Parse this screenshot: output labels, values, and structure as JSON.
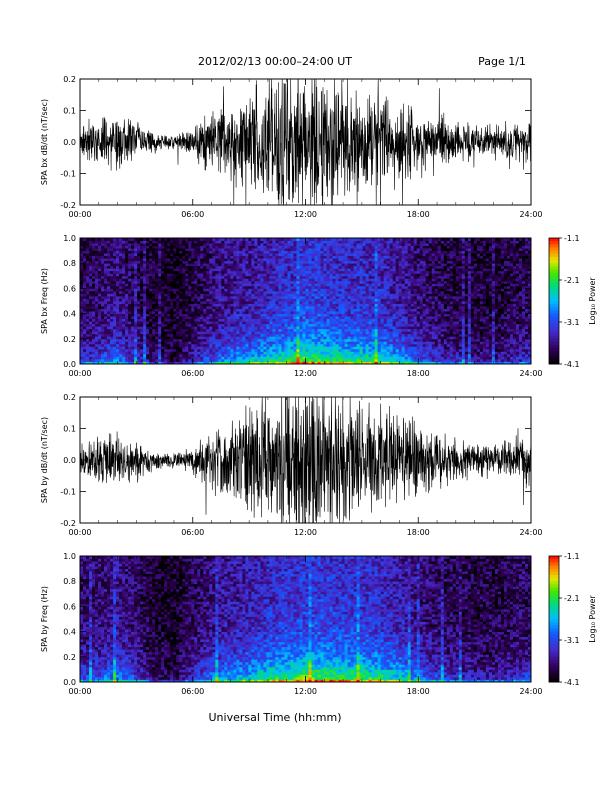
{
  "header": {
    "title": "2012/02/13  00:00–24:00 UT",
    "page": "Page 1/1"
  },
  "footer": {
    "xlabel": "Universal Time (hh:mm)"
  },
  "colorbar": {
    "label": "Log₁₀ Power",
    "ticks": [
      "-1.1",
      "-2.1",
      "-3.1",
      "-4.1"
    ]
  },
  "chart_data": [
    {
      "type": "line",
      "ylabel": "SPA bx dB/dt (nT/sec)",
      "xlim": [
        0,
        24
      ],
      "ylim": [
        -0.2,
        0.2
      ],
      "xticks": [
        "00:00",
        "06:00",
        "12:00",
        "18:00",
        "24:00"
      ],
      "yticks": [
        "-0.2",
        "-0.1",
        "0.0",
        "0.1",
        "0.2"
      ],
      "series": [
        {
          "x": [
            0,
            1,
            2,
            3,
            4,
            5,
            6,
            7,
            8,
            9,
            10,
            11,
            12,
            13,
            14,
            15,
            16,
            17,
            18,
            19,
            20,
            21,
            22,
            23,
            24
          ],
          "amplitude": [
            0.05,
            0.07,
            0.09,
            0.06,
            0.03,
            0.02,
            0.04,
            0.09,
            0.11,
            0.15,
            0.2,
            0.22,
            0.24,
            0.22,
            0.18,
            0.15,
            0.14,
            0.12,
            0.1,
            0.08,
            0.06,
            0.05,
            0.05,
            0.06,
            0.07
          ]
        }
      ]
    },
    {
      "type": "heatmap",
      "ylabel": "SPA bx Freq (Hz)",
      "xlim": [
        0,
        24
      ],
      "ylim": [
        0,
        1.0
      ],
      "zlim": [
        -4.1,
        -1.1
      ],
      "xticks": [
        "00:00",
        "06:00",
        "12:00",
        "18:00",
        "24:00"
      ],
      "yticks": [
        "0.0",
        "0.2",
        "0.4",
        "0.6",
        "0.8",
        "1.0"
      ],
      "activity": {
        "hours": [
          0,
          1,
          2,
          3,
          4,
          5,
          6,
          7,
          8,
          9,
          10,
          11,
          12,
          13,
          14,
          15,
          16,
          17,
          18,
          19,
          20,
          21,
          22,
          23,
          24
        ],
        "level": [
          0.3,
          0.35,
          0.45,
          0.3,
          0.15,
          0.1,
          0.25,
          0.4,
          0.5,
          0.55,
          0.65,
          0.7,
          0.8,
          0.75,
          0.7,
          0.7,
          0.65,
          0.55,
          0.4,
          0.3,
          0.25,
          0.2,
          0.2,
          0.25,
          0.3
        ]
      }
    },
    {
      "type": "line",
      "ylabel": "SPA by dB/dt (nT/sec)",
      "xlim": [
        0,
        24
      ],
      "ylim": [
        -0.2,
        0.2
      ],
      "xticks": [
        "00:00",
        "06:00",
        "12:00",
        "18:00",
        "24:00"
      ],
      "yticks": [
        "-0.2",
        "-0.1",
        "0.0",
        "0.1",
        "0.2"
      ],
      "series": [
        {
          "x": [
            0,
            1,
            2,
            3,
            4,
            5,
            6,
            7,
            8,
            9,
            10,
            11,
            12,
            13,
            14,
            15,
            16,
            17,
            18,
            19,
            20,
            21,
            22,
            23,
            24
          ],
          "amplitude": [
            0.05,
            0.07,
            0.09,
            0.06,
            0.03,
            0.02,
            0.04,
            0.09,
            0.12,
            0.16,
            0.21,
            0.24,
            0.25,
            0.23,
            0.19,
            0.16,
            0.15,
            0.13,
            0.1,
            0.08,
            0.06,
            0.05,
            0.05,
            0.06,
            0.08
          ]
        }
      ]
    },
    {
      "type": "heatmap",
      "ylabel": "SPA by Freq (Hz)",
      "xlim": [
        0,
        24
      ],
      "ylim": [
        0,
        1.0
      ],
      "zlim": [
        -4.1,
        -1.1
      ],
      "xticks": [
        "00:00",
        "06:00",
        "12:00",
        "18:00",
        "24:00"
      ],
      "yticks": [
        "0.0",
        "0.2",
        "0.4",
        "0.6",
        "0.8",
        "1.0"
      ],
      "activity": {
        "hours": [
          0,
          1,
          2,
          3,
          4,
          5,
          6,
          7,
          8,
          9,
          10,
          11,
          12,
          13,
          14,
          15,
          16,
          17,
          18,
          19,
          20,
          21,
          22,
          23,
          24
        ],
        "level": [
          0.35,
          0.4,
          0.5,
          0.35,
          0.15,
          0.12,
          0.3,
          0.45,
          0.55,
          0.6,
          0.7,
          0.75,
          0.8,
          0.8,
          0.75,
          0.75,
          0.7,
          0.6,
          0.45,
          0.35,
          0.3,
          0.25,
          0.25,
          0.3,
          0.35
        ]
      }
    }
  ]
}
